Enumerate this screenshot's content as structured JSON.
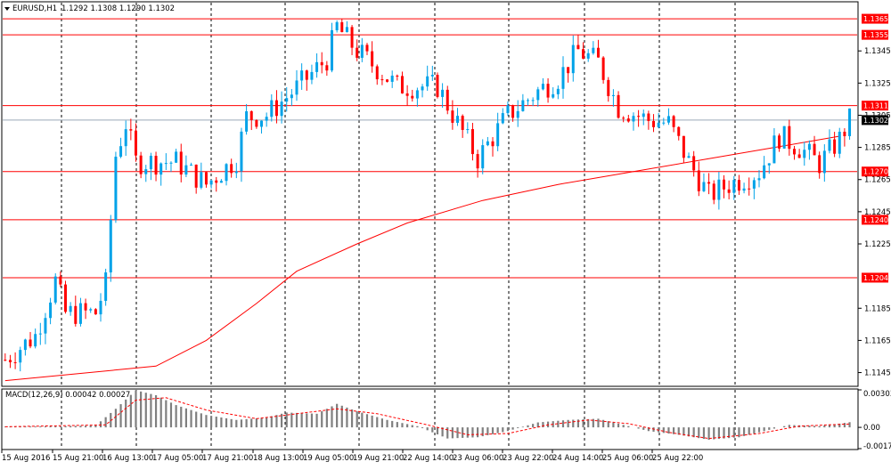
{
  "header": {
    "symbol": "EURUSD,H1",
    "ohlc": "1.1292 1.1308 1.1290 1.1302"
  },
  "macd": {
    "label": "MACD(12,26,9) 0.00042 0.00027"
  },
  "colors": {
    "bull": "#00a2e8",
    "bear": "#ff0000",
    "level": "#ff0000",
    "ma": "#ff0000",
    "grid": "#000000",
    "macd_hist": "#7f7f7f",
    "macd_signal": "#ff0000",
    "current_tag": "#000000"
  },
  "chart_data": [
    {
      "type": "candlestick",
      "title": "",
      "y_ticks": [
        "1.1345",
        "1.1325",
        "1.1305",
        "1.1285",
        "1.1265",
        "1.1245",
        "1.1225",
        "1.1185",
        "1.1165",
        "1.1145"
      ],
      "ylim": [
        1.1137,
        1.1375
      ],
      "x_tick_labels": [
        "15 Aug 2016",
        "15 Aug 21:00",
        "16 Aug 13:00",
        "17 Aug 05:00",
        "17 Aug 21:00",
        "18 Aug 13:00",
        "19 Aug 05:00",
        "19 Aug 21:00",
        "22 Aug 14:00",
        "23 Aug 06:00",
        "23 Aug 22:00",
        "24 Aug 14:00",
        "25 Aug 06:00",
        "25 Aug 22:00"
      ],
      "grid": "vertical dotted",
      "horizontal_levels": [
        "1.1365",
        "1.1355",
        "1.1311",
        "1.1270",
        "1.1240",
        "1.1204"
      ],
      "current_price": "1.1302",
      "moving_average_path": [
        [
          0,
          1.114
        ],
        [
          30,
          1.1149
        ],
        [
          40,
          1.1165
        ],
        [
          50,
          1.1188
        ],
        [
          58,
          1.1208
        ],
        [
          70,
          1.1225
        ],
        [
          80,
          1.1238
        ],
        [
          95,
          1.1252
        ],
        [
          110,
          1.1262
        ],
        [
          125,
          1.127
        ],
        [
          140,
          1.1278
        ],
        [
          155,
          1.1286
        ],
        [
          166,
          1.1292
        ]
      ],
      "key_points": [
        [
          0,
          1.1153
        ],
        [
          6,
          1.1168
        ],
        [
          10,
          1.1202
        ],
        [
          12,
          1.1182
        ],
        [
          18,
          1.1182
        ],
        [
          20,
          1.12
        ],
        [
          22,
          1.128
        ],
        [
          24,
          1.13
        ],
        [
          26,
          1.1276
        ],
        [
          34,
          1.1276
        ],
        [
          40,
          1.1262
        ],
        [
          46,
          1.1278
        ],
        [
          48,
          1.1304
        ],
        [
          52,
          1.1305
        ],
        [
          58,
          1.1322
        ],
        [
          64,
          1.134
        ],
        [
          66,
          1.136
        ],
        [
          70,
          1.1345
        ],
        [
          78,
          1.1323
        ],
        [
          86,
          1.1323
        ],
        [
          90,
          1.13
        ],
        [
          94,
          1.1278
        ],
        [
          100,
          1.1305
        ],
        [
          106,
          1.132
        ],
        [
          110,
          1.1328
        ],
        [
          114,
          1.1345
        ],
        [
          118,
          1.1338
        ],
        [
          122,
          1.131
        ],
        [
          128,
          1.1302
        ],
        [
          132,
          1.13
        ],
        [
          136,
          1.1276
        ],
        [
          140,
          1.1255
        ],
        [
          144,
          1.1262
        ],
        [
          150,
          1.127
        ],
        [
          154,
          1.1292
        ],
        [
          158,
          1.1285
        ],
        [
          162,
          1.1275
        ],
        [
          166,
          1.129
        ],
        [
          168,
          1.1302
        ]
      ]
    },
    {
      "type": "bar",
      "title": "",
      "y_ticks": [
        "0.00303",
        "0.00",
        "-0.00172"
      ],
      "ylim": [
        -0.00172,
        0.00303
      ],
      "histogram_path": [
        [
          0,
          5e-05
        ],
        [
          10,
          8e-05
        ],
        [
          18,
          0.00015
        ],
        [
          22,
          0.0015
        ],
        [
          26,
          0.003
        ],
        [
          30,
          0.0026
        ],
        [
          34,
          0.0018
        ],
        [
          40,
          0.001
        ],
        [
          46,
          0.0006
        ],
        [
          52,
          0.0008
        ],
        [
          56,
          0.0012
        ],
        [
          62,
          0.0011
        ],
        [
          66,
          0.0019
        ],
        [
          70,
          0.0013
        ],
        [
          76,
          0.0006
        ],
        [
          82,
          0.0001
        ],
        [
          88,
          -0.0009
        ],
        [
          94,
          -0.0008
        ],
        [
          100,
          -0.0003
        ],
        [
          106,
          0.0004
        ],
        [
          112,
          0.0006
        ],
        [
          118,
          0.0007
        ],
        [
          122,
          0.0003
        ],
        [
          128,
          -0.0003
        ],
        [
          134,
          -0.0006
        ],
        [
          140,
          -0.001
        ],
        [
          146,
          -0.0008
        ],
        [
          150,
          -0.0004
        ],
        [
          156,
          0.0002
        ],
        [
          162,
          0.0001
        ],
        [
          166,
          0.0003
        ],
        [
          168,
          0.00042
        ]
      ],
      "signal_path": [
        [
          0,
          5e-05
        ],
        [
          20,
          0.0002
        ],
        [
          26,
          0.0022
        ],
        [
          32,
          0.0024
        ],
        [
          40,
          0.0014
        ],
        [
          50,
          0.0007
        ],
        [
          58,
          0.0011
        ],
        [
          66,
          0.0015
        ],
        [
          74,
          0.0011
        ],
        [
          84,
          0.0002
        ],
        [
          92,
          -0.0006
        ],
        [
          100,
          -0.0005
        ],
        [
          108,
          0.0002
        ],
        [
          116,
          0.0006
        ],
        [
          124,
          0.0003
        ],
        [
          132,
          -0.0004
        ],
        [
          140,
          -0.0009
        ],
        [
          150,
          -0.0005
        ],
        [
          158,
          0.0001
        ],
        [
          168,
          0.00027
        ]
      ]
    }
  ]
}
